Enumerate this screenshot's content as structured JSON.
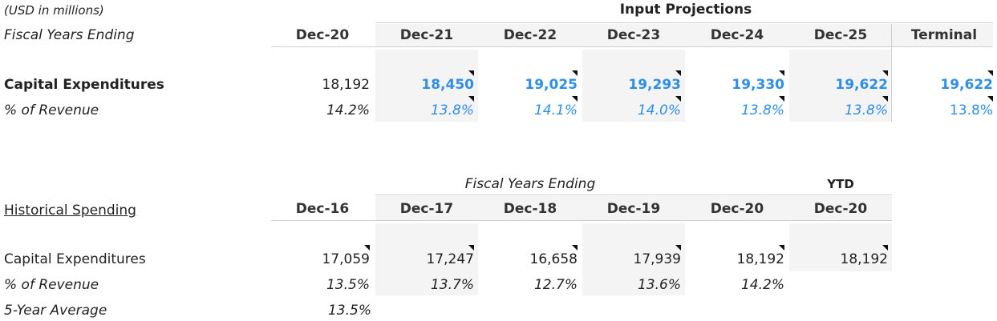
{
  "units_note": "(USD in millions)",
  "projection": {
    "group_header": "Input Projections",
    "fiscal_label": "Fiscal Years Ending",
    "columns": [
      "Dec-20",
      "Dec-21",
      "Dec-22",
      "Dec-23",
      "Dec-24",
      "Dec-25",
      "Terminal"
    ],
    "capex_label": "Capital Expenditures",
    "capex_values": [
      "18,192",
      "18,450",
      "19,025",
      "19,293",
      "19,330",
      "19,622",
      "19,622"
    ],
    "pct_label": "% of Revenue",
    "pct_values": [
      "14.2%",
      "13.8%",
      "14.1%",
      "14.0%",
      "13.8%",
      "13.8%",
      "13.8%"
    ]
  },
  "historical": {
    "title": "Historical Spending",
    "fiscal_label": "Fiscal Years Ending",
    "ytd_label": "YTD",
    "columns": [
      "Dec-16",
      "Dec-17",
      "Dec-18",
      "Dec-19",
      "Dec-20",
      "Dec-20"
    ],
    "capex_label": "Capital Expenditures",
    "capex_values": [
      "17,059",
      "17,247",
      "16,658",
      "17,939",
      "18,192",
      "18,192"
    ],
    "pct_label": "% of Revenue",
    "pct_values": [
      "13.5%",
      "13.7%",
      "12.7%",
      "13.6%",
      "14.2%"
    ],
    "avg_label": "5-Year Average",
    "avg_value": "13.5%"
  },
  "colors": {
    "input_blue": "#2f8fe8",
    "shade": "#f4f4f4"
  }
}
